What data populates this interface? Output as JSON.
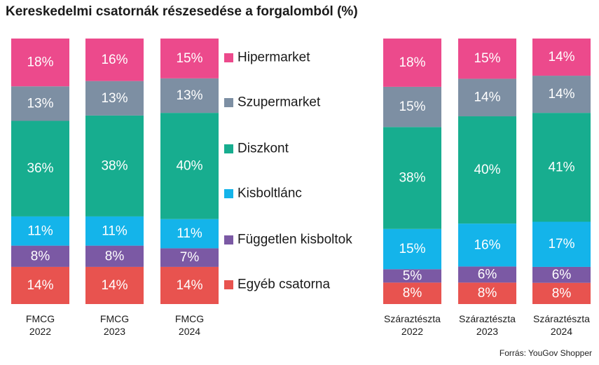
{
  "title": "Kereskedelmi csatornák részesedése a forgalomból (%)",
  "source": "Forrás: YouGov Shopper",
  "chart_data": {
    "type": "bar",
    "stacked": true,
    "percent_stacked": true,
    "ylim": [
      0,
      100
    ],
    "grid": false,
    "legend_position": "center",
    "categories": [
      [
        "FMCG",
        "2022"
      ],
      [
        "FMCG",
        "2023"
      ],
      [
        "FMCG",
        "2024"
      ],
      [
        "Száraztészta",
        "2022"
      ],
      [
        "Száraztészta",
        "2023"
      ],
      [
        "Száraztészta",
        "2024"
      ]
    ],
    "series": [
      {
        "name": "Egyéb csatorna",
        "color": "#e8534f",
        "values": [
          14,
          14,
          14,
          8,
          8,
          8
        ]
      },
      {
        "name": "Független kisboltok",
        "color": "#7b59a4",
        "values": [
          8,
          8,
          7,
          5,
          6,
          6
        ]
      },
      {
        "name": "Kisboltlánc",
        "color": "#14b4ea",
        "values": [
          11,
          11,
          11,
          15,
          16,
          17
        ]
      },
      {
        "name": "Diszkont",
        "color": "#17ad8f",
        "values": [
          36,
          38,
          40,
          38,
          40,
          41
        ]
      },
      {
        "name": "Szupermarket",
        "color": "#7d8fa3",
        "values": [
          13,
          13,
          13,
          15,
          14,
          14
        ]
      },
      {
        "name": "Hipermarket",
        "color": "#ec4a8c",
        "values": [
          18,
          16,
          15,
          18,
          15,
          14
        ]
      }
    ],
    "legend_order": [
      "Hipermarket",
      "Szupermarket",
      "Diszkont",
      "Kisboltlánc",
      "Független kisboltok",
      "Egyéb csatorna"
    ],
    "value_suffix": "%"
  }
}
